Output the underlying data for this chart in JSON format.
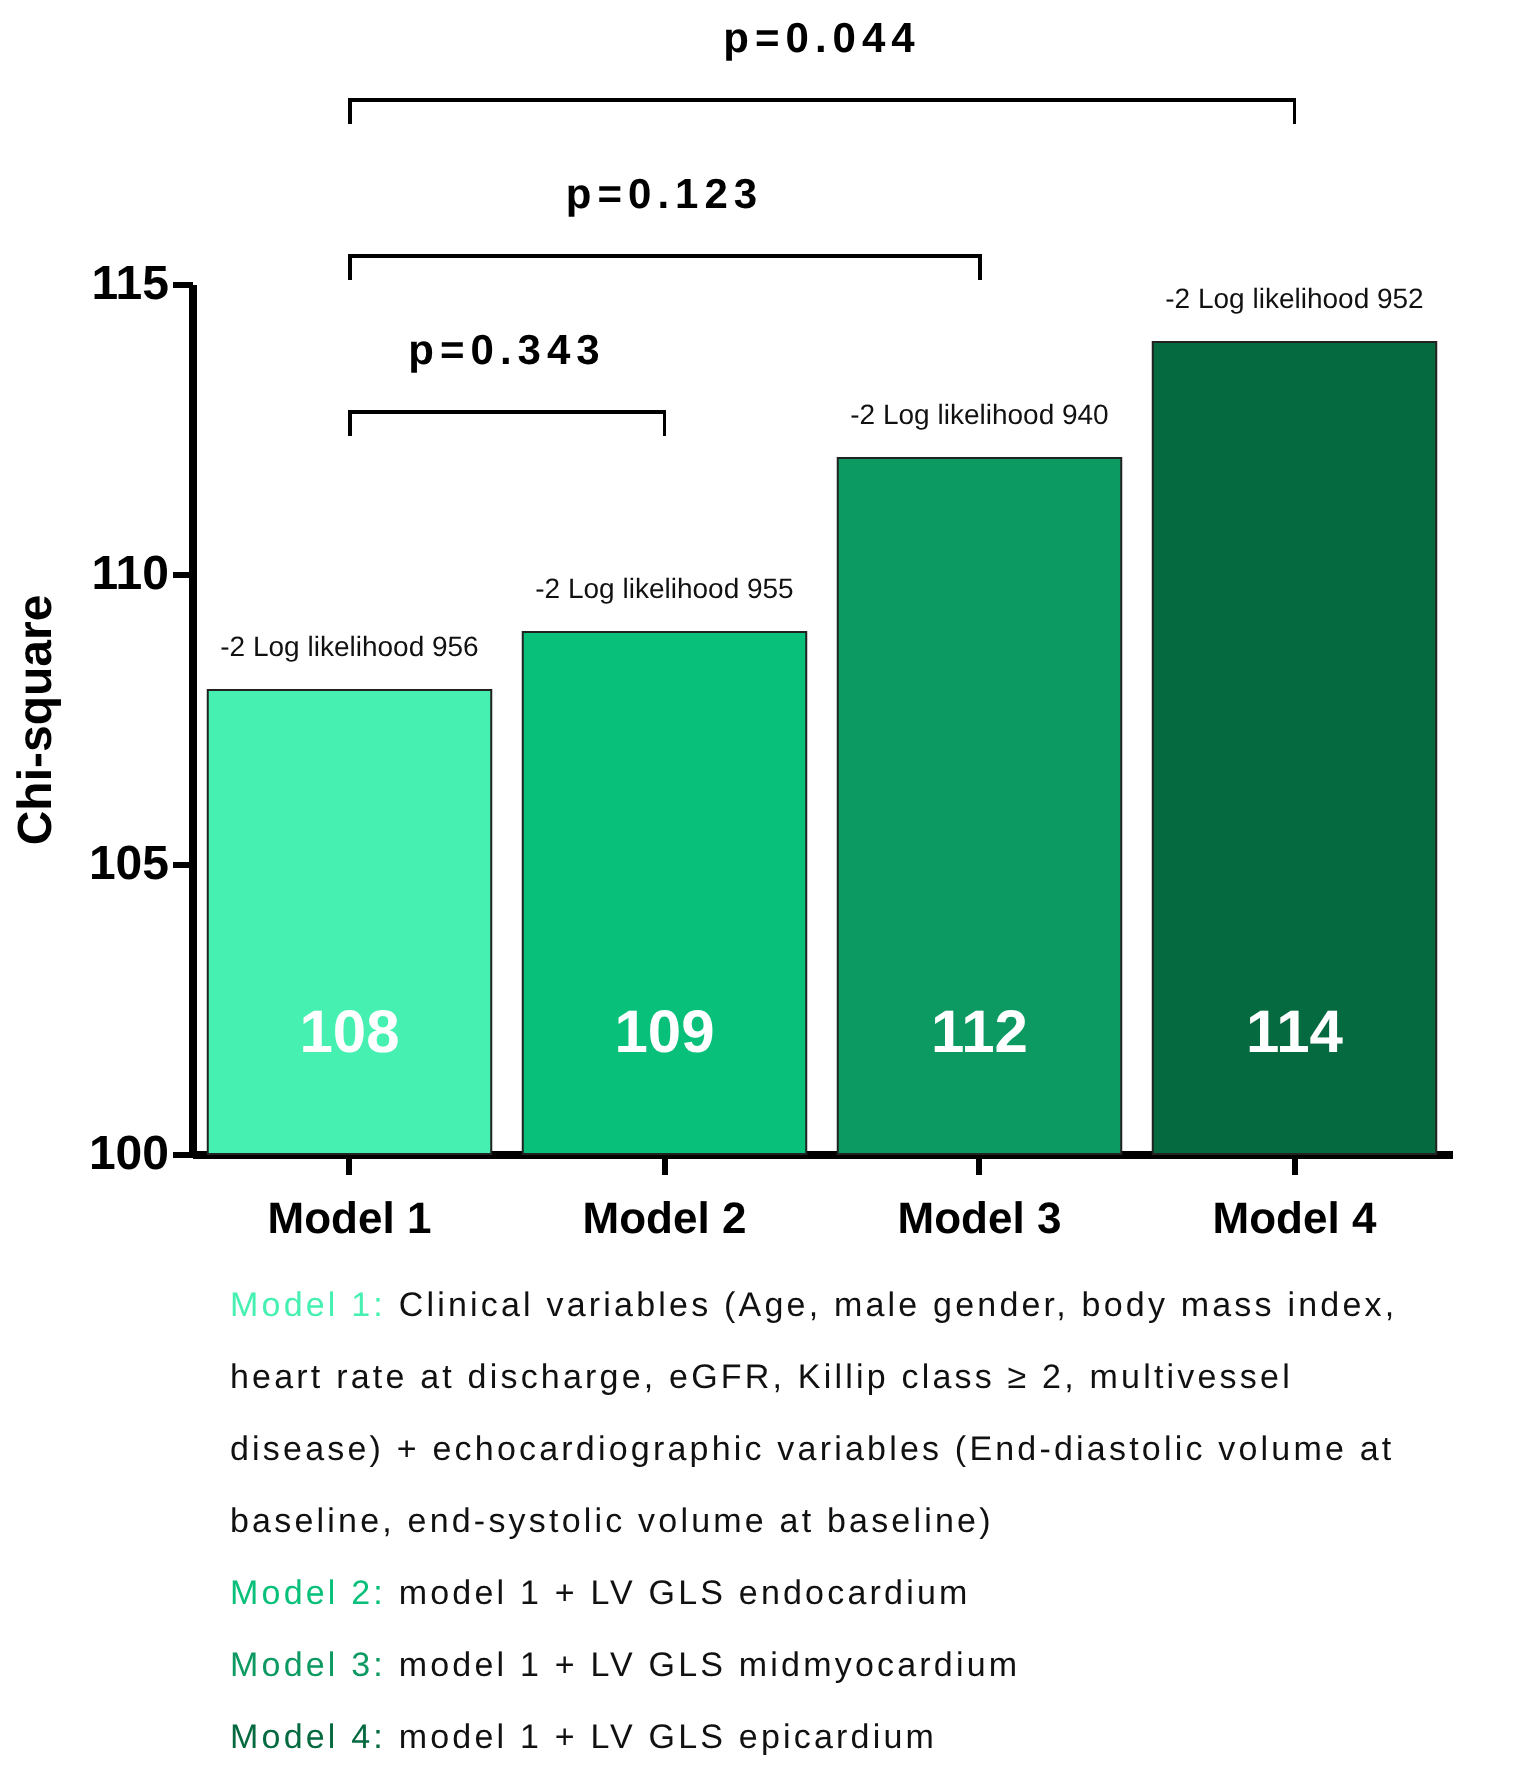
{
  "chart_data": {
    "type": "bar",
    "ylabel": "Chi-square",
    "categories": [
      "Model 1",
      "Model 2",
      "Model 3",
      "Model 4"
    ],
    "values": [
      108,
      109,
      112,
      114
    ],
    "colors": [
      "#45f0b0",
      "#08c07a",
      "#0c9a62",
      "#066a40"
    ],
    "ylim": [
      100,
      115
    ],
    "yticks": [
      100,
      105,
      110,
      115
    ],
    "data_labels": true,
    "annotations": [
      "p=0.044",
      "p=0.123",
      "p=0.343",
      {
        "text": "-2 Log likelihood 956",
        "x": "Model 1",
        "y": 108
      },
      {
        "text": "-2 Log likelihood 955",
        "x": "Model 2",
        "y": 109
      },
      {
        "text": "-2 Log likelihood 940",
        "x": "Model 3",
        "y": 112
      },
      {
        "text": "-2 Log likelihood 952",
        "x": "Model 4",
        "y": 114
      },
      "Model 1: Clinical variables (Age, male gender, body mass index, heart rate at discharge, eGFR, Killip class ≥ 2, multivessel disease) + echocardiographic variables (End-diastolic volume at baseline, end-systolic volume at baseline)",
      "Model 2: model 1 + LV GLS endocardium",
      "Model 3: model 1 + LV GLS midmyocardium",
      "Model 4: model 1 + LV GLS epicardium"
    ]
  }
}
